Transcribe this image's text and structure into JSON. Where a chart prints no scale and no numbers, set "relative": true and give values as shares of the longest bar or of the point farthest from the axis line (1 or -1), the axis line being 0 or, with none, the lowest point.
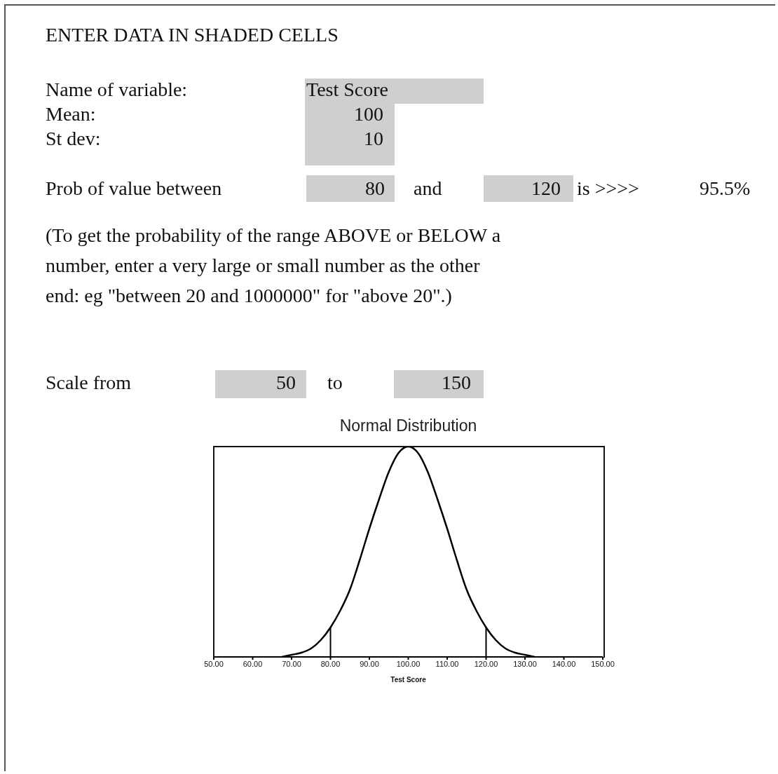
{
  "chart_data": [
    {
      "type": "other",
      "annotations": [
        "ENTER DATA IN SHADED CELLS",
        "Name of variable:",
        "Test Score",
        "Mean:",
        "100",
        "St dev:",
        "10",
        "Prob of value between",
        "80",
        "and",
        "120",
        "is >>>>",
        "95.5%",
        "(To get the probability of the range ABOVE or BELOW a",
        "number, enter a very large or small number as the other",
        "end: eg \"between 20 and 1000000\" for \"above 20\".)",
        "Scale from",
        "50",
        "to",
        "150"
      ]
    },
    {
      "type": "line",
      "title": "Normal Distribution",
      "xlabel": "Test Score",
      "relative": true,
      "marker": "none",
      "line_style": "solid",
      "xlim": [
        50,
        150
      ],
      "xticks": [
        {
          "value": 50,
          "label": "50.00"
        },
        {
          "value": 60,
          "label": "60.00"
        },
        {
          "value": 70,
          "label": "70.00"
        },
        {
          "value": 80,
          "label": "80.00"
        },
        {
          "value": 90,
          "label": "90.00"
        },
        {
          "value": 100,
          "label": "100.00"
        },
        {
          "value": 110,
          "label": "110.00"
        },
        {
          "value": 120,
          "label": "120.00"
        },
        {
          "value": 130,
          "label": "130.00"
        },
        {
          "value": 140,
          "label": "140.00"
        },
        {
          "value": 150,
          "label": "150.00"
        }
      ],
      "x": [
        67.5,
        70,
        72.5,
        75,
        77.5,
        80,
        82.5,
        85,
        87.5,
        90,
        92.5,
        95,
        97.5,
        100,
        102.5,
        105,
        107.5,
        110,
        112.5,
        115,
        117.5,
        120,
        122.5,
        125,
        127.5,
        130,
        132.5
      ],
      "series": [
        {
          "color": "#000000",
          "values": [
            0,
            0.01,
            0.02,
            0.04,
            0.08,
            0.14,
            0.22,
            0.32,
            0.46,
            0.61,
            0.75,
            0.88,
            0.97,
            1,
            0.97,
            0.88,
            0.75,
            0.61,
            0.46,
            0.32,
            0.22,
            0.14,
            0.08,
            0.04,
            0.02,
            0.01,
            0
          ]
        }
      ],
      "ref_lines": [
        {
          "axis": "x",
          "value": 80,
          "color": "#000000"
        },
        {
          "axis": "x",
          "value": 120,
          "color": "#000000"
        }
      ]
    }
  ]
}
